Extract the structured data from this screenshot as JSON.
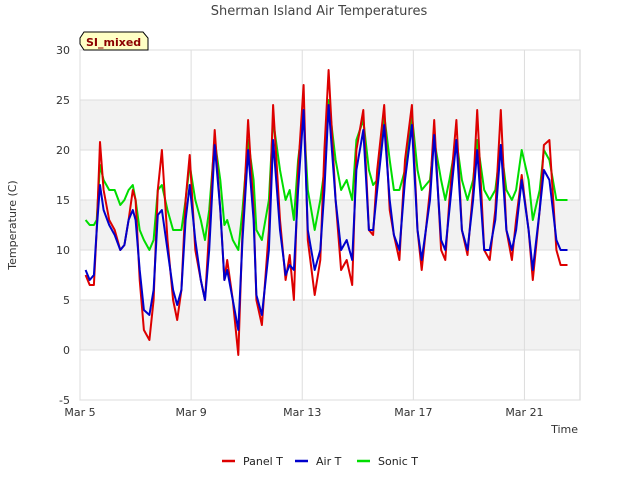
{
  "chart_data": {
    "type": "line",
    "title": "Sherman Island Air Temperatures",
    "xlabel": "Time",
    "ylabel": "Temperature (C)",
    "badge": "SI_mixed",
    "x_ticks": [
      "Mar 5",
      "Mar 9",
      "Mar 13",
      "Mar 17",
      "Mar 21"
    ],
    "y_ticks": [
      -5,
      0,
      5,
      10,
      15,
      20,
      25,
      30
    ],
    "xlim": [
      "Mar 5",
      "Mar 23"
    ],
    "ylim": [
      -5,
      30
    ],
    "grid": true,
    "legend_position": "bottom",
    "x_note": "x values are days after Mar 5 00:00",
    "series": [
      {
        "name": "Panel T",
        "color": "#dd0000",
        "x": [
          0.2,
          0.35,
          0.5,
          0.6,
          0.72,
          0.85,
          1.05,
          1.25,
          1.45,
          1.6,
          1.75,
          1.9,
          2.0,
          2.15,
          2.3,
          2.5,
          2.65,
          2.8,
          2.95,
          3.15,
          3.35,
          3.5,
          3.65,
          3.8,
          3.95,
          4.15,
          4.35,
          4.5,
          4.65,
          4.85,
          5.05,
          5.2,
          5.3,
          5.5,
          5.7,
          5.85,
          6.05,
          6.25,
          6.35,
          6.55,
          6.8,
          6.95,
          7.2,
          7.4,
          7.55,
          7.7,
          7.85,
          8.05,
          8.2,
          8.45,
          8.65,
          8.8,
          8.95,
          9.2,
          9.4,
          9.6,
          9.8,
          9.95,
          10.2,
          10.4,
          10.55,
          10.7,
          10.95,
          11.15,
          11.3,
          11.5,
          11.7,
          11.95,
          12.15,
          12.3,
          12.6,
          12.75,
          13.0,
          13.15,
          13.3,
          13.55,
          13.75,
          13.95,
          14.15,
          14.3,
          14.55,
          14.75,
          14.95,
          15.15,
          15.35,
          15.55,
          15.7,
          15.9,
          16.15,
          16.3,
          16.55,
          16.7,
          16.9,
          17.15,
          17.3,
          17.55
        ],
        "values": [
          7.5,
          6.5,
          6.5,
          12,
          20.8,
          16,
          13,
          12,
          10,
          10.5,
          13,
          16,
          15,
          7,
          2,
          1,
          5,
          16,
          20,
          11,
          5,
          3,
          6,
          15,
          19.5,
          10,
          7,
          5,
          12,
          22,
          14,
          7,
          9,
          5,
          -0.5,
          12,
          23,
          14,
          5,
          2.5,
          12,
          24.5,
          13,
          7,
          9.5,
          5,
          18,
          26.5,
          11,
          5.5,
          9,
          20,
          28,
          15,
          8,
          9,
          6.5,
          20,
          24,
          12,
          11.5,
          18,
          24.5,
          14,
          11.5,
          9,
          19,
          24.5,
          12,
          8,
          16,
          23,
          10,
          9,
          15,
          23,
          12,
          9.5,
          16,
          24,
          10,
          9,
          14,
          24,
          12,
          9,
          13,
          17.5,
          12,
          7,
          14,
          20.5,
          21,
          10,
          8.5,
          8.5
        ]
      },
      {
        "name": "Air T",
        "color": "#0000cc",
        "x": [
          0.2,
          0.35,
          0.5,
          0.6,
          0.72,
          0.85,
          1.05,
          1.25,
          1.45,
          1.6,
          1.75,
          1.9,
          2.0,
          2.15,
          2.3,
          2.5,
          2.65,
          2.8,
          2.95,
          3.15,
          3.35,
          3.5,
          3.65,
          3.8,
          3.95,
          4.15,
          4.35,
          4.5,
          4.65,
          4.85,
          5.05,
          5.2,
          5.3,
          5.5,
          5.7,
          5.85,
          6.05,
          6.25,
          6.35,
          6.55,
          6.8,
          6.95,
          7.2,
          7.4,
          7.55,
          7.7,
          7.85,
          8.05,
          8.2,
          8.45,
          8.65,
          8.8,
          8.95,
          9.2,
          9.4,
          9.6,
          9.8,
          9.95,
          10.2,
          10.4,
          10.55,
          10.7,
          10.95,
          11.15,
          11.3,
          11.5,
          11.7,
          11.95,
          12.15,
          12.3,
          12.6,
          12.75,
          13.0,
          13.15,
          13.3,
          13.55,
          13.75,
          13.95,
          14.15,
          14.3,
          14.55,
          14.75,
          14.95,
          15.15,
          15.35,
          15.55,
          15.7,
          15.9,
          16.15,
          16.3,
          16.55,
          16.7,
          16.9,
          17.15,
          17.3,
          17.55
        ],
        "values": [
          8,
          7,
          7.5,
          12,
          16.5,
          14,
          12.5,
          11.5,
          10,
          10.5,
          13,
          14,
          13,
          8,
          4,
          3.5,
          6,
          13.5,
          14,
          10,
          6,
          4.5,
          6,
          13,
          16.5,
          11,
          7,
          5,
          10,
          20.5,
          14,
          7,
          8,
          5,
          2,
          11,
          20,
          13,
          5.5,
          3.5,
          10,
          21,
          12,
          7.5,
          8.5,
          8,
          16,
          24,
          12,
          8,
          10,
          16,
          24.5,
          15,
          10,
          11,
          9,
          18,
          22,
          12,
          12,
          16,
          22.5,
          15,
          11.5,
          10,
          17,
          22.5,
          12,
          9,
          15,
          21.5,
          11,
          10,
          14,
          21,
          12,
          10,
          15,
          20,
          10,
          10,
          13,
          20.5,
          12,
          10,
          12,
          17,
          12,
          8,
          14,
          18,
          17,
          11,
          10,
          10
        ]
      },
      {
        "name": "Sonic T",
        "color": "#00dd00",
        "x": [
          0.2,
          0.35,
          0.5,
          0.6,
          0.72,
          0.85,
          1.05,
          1.25,
          1.45,
          1.6,
          1.75,
          1.9,
          2.0,
          2.15,
          2.3,
          2.5,
          2.65,
          2.8,
          2.95,
          3.15,
          3.35,
          3.5,
          3.65,
          3.8,
          3.95,
          4.15,
          4.35,
          4.5,
          4.65,
          4.85,
          5.05,
          5.2,
          5.3,
          5.5,
          5.7,
          5.85,
          6.05,
          6.25,
          6.35,
          6.55,
          6.8,
          6.95,
          7.2,
          7.4,
          7.55,
          7.7,
          7.85,
          8.05,
          8.2,
          8.45,
          8.65,
          8.8,
          8.95,
          9.2,
          9.4,
          9.6,
          9.8,
          9.95,
          10.2,
          10.4,
          10.55,
          10.7,
          10.95,
          11.15,
          11.3,
          11.5,
          11.7,
          11.95,
          12.15,
          12.3,
          12.6,
          12.75,
          13.0,
          13.15,
          13.3,
          13.55,
          13.75,
          13.95,
          14.15,
          14.3,
          14.55,
          14.75,
          14.95,
          15.15,
          15.35,
          15.55,
          15.7,
          15.9,
          16.15,
          16.3,
          16.55,
          16.7,
          16.9,
          17.15,
          17.3,
          17.55
        ],
        "values": [
          13,
          12.5,
          12.5,
          13,
          18.5,
          17,
          16,
          16,
          14.5,
          15,
          16,
          16.5,
          15,
          12,
          11,
          10,
          11,
          16,
          16.5,
          14,
          12,
          12,
          12,
          15,
          18.5,
          15,
          13,
          11,
          14,
          21,
          17,
          12.5,
          13,
          11,
          10,
          14,
          21,
          17,
          12,
          11,
          15,
          23,
          18,
          15,
          16,
          13,
          19,
          23.5,
          16,
          12,
          15,
          18,
          25,
          19,
          16,
          17,
          15,
          21,
          23,
          18,
          16.5,
          17,
          23.5,
          19,
          16,
          16,
          18,
          23.5,
          18,
          16,
          17,
          21,
          17,
          15,
          17,
          21,
          17,
          15,
          17,
          21,
          16,
          15,
          16,
          20.5,
          16,
          15,
          16,
          20,
          17,
          13,
          16,
          20,
          19,
          15,
          15,
          15
        ]
      }
    ]
  }
}
